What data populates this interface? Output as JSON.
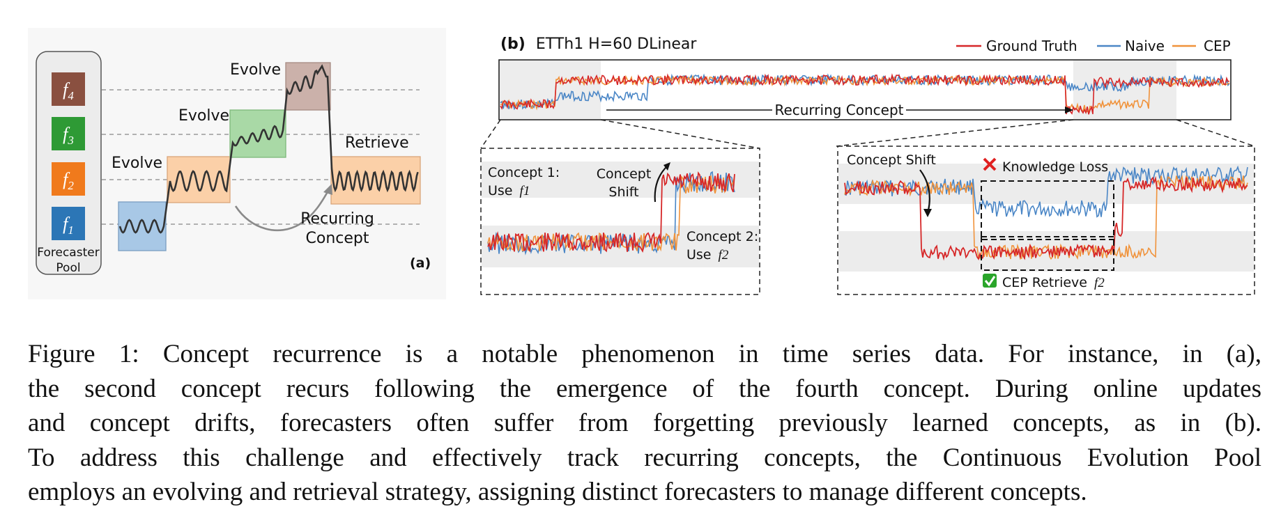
{
  "panel_a": {
    "tag": "(a)",
    "pool_label_1": "Forecaster",
    "pool_label_2": "Pool",
    "forecasters": [
      {
        "label": "f4",
        "color": "#8a5040"
      },
      {
        "label": "f3",
        "color": "#2e9a35"
      },
      {
        "label": "f2",
        "color": "#f07a1c"
      },
      {
        "label": "f1",
        "color": "#2c76b6"
      }
    ],
    "evolve_label": "Evolve",
    "retrieve_label": "Retrieve",
    "recurring_1": "Recurring",
    "recurring_2": "Concept",
    "box_colors": {
      "blue": "#a8c8e6",
      "orange": "#fbd0a8",
      "green": "#a9d9a6",
      "brown": "#cbb1aa"
    }
  },
  "panel_b": {
    "tag": "(b)",
    "title": "ETTh1 H=60 DLinear",
    "legend": [
      {
        "name": "Ground Truth",
        "color": "#d62728"
      },
      {
        "name": "Naive",
        "color": "#4a86c6"
      },
      {
        "name": "CEP",
        "color": "#f0923a"
      }
    ],
    "recurring_label": "Recurring Concept",
    "zoom_left": {
      "concept1_1": "Concept 1:",
      "concept1_2": "Use",
      "f1": "f1",
      "shift_1": "Concept",
      "shift_2": "Shift",
      "concept2_1": "Concept 2:",
      "concept2_2": "Use",
      "f2": "f2"
    },
    "zoom_right": {
      "shift": "Concept Shift",
      "loss": "Knowledge Loss",
      "retrieve": "CEP Retrieve",
      "f2": "f2",
      "cross_color": "#e02020",
      "check_color": "#2aa52a"
    }
  },
  "caption": {
    "lines": [
      "Figure 1: Concept recurrence is a notable phenomenon in time series data. For instance, in (a),",
      "the second concept recurs following the emergence of the fourth concept. During online updates",
      "and concept drifts, forecasters often suffer from forgetting previously learned concepts, as in (b).",
      "To address this challenge and effectively track recurring concepts, the Continuous Evolution Pool",
      "employs an evolving and retrieval strategy, assigning distinct forecasters to manage different concepts."
    ]
  }
}
